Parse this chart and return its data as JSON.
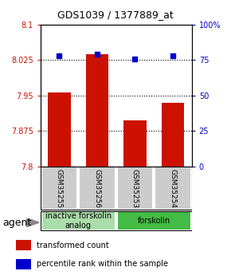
{
  "title": "GDS1039 / 1377889_at",
  "samples": [
    "GSM35255",
    "GSM35256",
    "GSM35253",
    "GSM35254"
  ],
  "bar_values": [
    7.957,
    8.037,
    7.898,
    7.935
  ],
  "percentile_values": [
    78,
    79,
    76,
    78
  ],
  "ylim_left": [
    7.8,
    8.1
  ],
  "ylim_right": [
    0,
    100
  ],
  "yticks_left": [
    7.8,
    7.875,
    7.95,
    8.025,
    8.1
  ],
  "ytick_labels_left": [
    "7.8",
    "7.875",
    "7.95",
    "8.025",
    "8.1"
  ],
  "yticks_right": [
    0,
    25,
    50,
    75,
    100
  ],
  "ytick_labels_right": [
    "0",
    "25",
    "50",
    "75",
    "100%"
  ],
  "hlines": [
    7.875,
    7.95,
    8.025
  ],
  "bar_color": "#cc1100",
  "dot_color": "#0000cc",
  "bar_width": 0.6,
  "groups": [
    {
      "label": "inactive forskolin\nanalog",
      "indices": [
        0,
        1
      ],
      "color": "#aaddaa"
    },
    {
      "label": "forskolin",
      "indices": [
        2,
        3
      ],
      "color": "#44bb44"
    }
  ],
  "agent_label": "agent",
  "legend_items": [
    {
      "color": "#cc1100",
      "label": "transformed count"
    },
    {
      "color": "#0000cc",
      "label": "percentile rank within the sample"
    }
  ]
}
